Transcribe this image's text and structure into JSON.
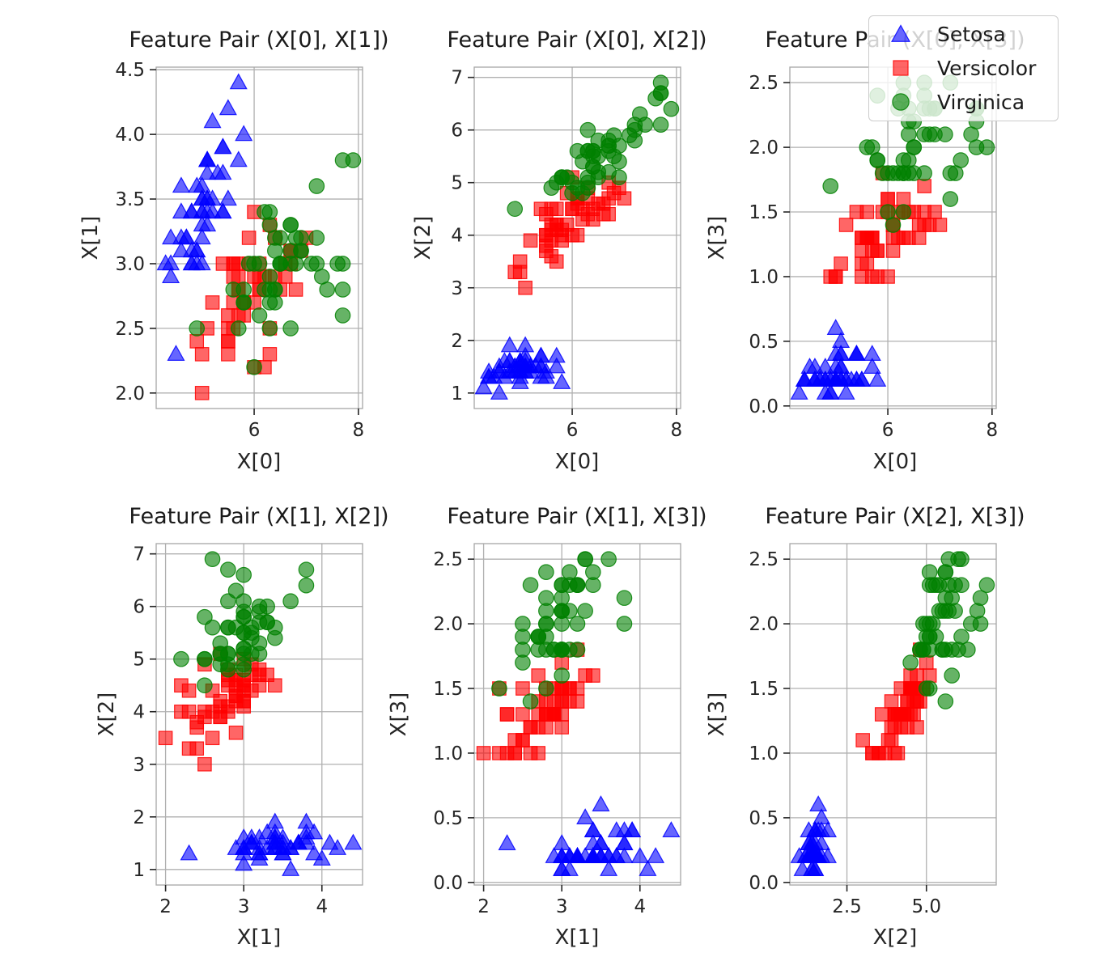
{
  "figure": {
    "background": "#ffffff",
    "grid_color": "#b0b0b0",
    "spine_color": "#a6a6a6",
    "tick_color": "#262626",
    "text_color": "#262626"
  },
  "legend": {
    "items": [
      {
        "label": "Setosa",
        "marker": "triangle",
        "color": "#0000ff"
      },
      {
        "label": "Versicolor",
        "marker": "square",
        "color": "#ff0000"
      },
      {
        "label": "Virginica",
        "marker": "circle",
        "color": "#008000"
      }
    ]
  },
  "chart_data": {
    "type": "scatter",
    "grid": true,
    "legend_position": "upper right",
    "marker_alpha": 0.6,
    "features": [
      "X[0]",
      "X[1]",
      "X[2]",
      "X[3]"
    ],
    "subplots": [
      {
        "title": "Feature Pair (X[0], X[1])",
        "xlabel": "X[0]",
        "ylabel": "X[1]",
        "xfeature": 0,
        "yfeature": 1,
        "xlim": [
          4.12,
          8.08
        ],
        "ylim": [
          1.88,
          4.52
        ],
        "xticks": [
          6,
          8
        ],
        "xtick_labels": [
          "6",
          "8"
        ],
        "yticks": [
          2.0,
          2.5,
          3.0,
          3.5,
          4.0,
          4.5
        ],
        "ytick_labels": [
          "2.0",
          "2.5",
          "3.0",
          "3.5",
          "4.0",
          "4.5"
        ]
      },
      {
        "title": "Feature Pair (X[0], X[2])",
        "xlabel": "X[0]",
        "ylabel": "X[2]",
        "xfeature": 0,
        "yfeature": 2,
        "xlim": [
          4.12,
          8.08
        ],
        "ylim": [
          0.705,
          7.195
        ],
        "xticks": [
          6,
          8
        ],
        "xtick_labels": [
          "6",
          "8"
        ],
        "yticks": [
          1,
          2,
          3,
          4,
          5,
          6,
          7
        ],
        "ytick_labels": [
          "1",
          "2",
          "3",
          "4",
          "5",
          "6",
          "7"
        ]
      },
      {
        "title": "Feature Pair (X[0], X[3])",
        "xlabel": "X[0]",
        "ylabel": "X[3]",
        "xfeature": 0,
        "yfeature": 3,
        "xlim": [
          4.12,
          8.08
        ],
        "ylim": [
          -0.02,
          2.62
        ],
        "xticks": [
          6,
          8
        ],
        "xtick_labels": [
          "6",
          "8"
        ],
        "yticks": [
          0.0,
          0.5,
          1.0,
          1.5,
          2.0,
          2.5
        ],
        "ytick_labels": [
          "0.0",
          "0.5",
          "1.0",
          "1.5",
          "2.0",
          "2.5"
        ]
      },
      {
        "title": "Feature Pair (X[1], X[2])",
        "xlabel": "X[1]",
        "ylabel": "X[2]",
        "xfeature": 1,
        "yfeature": 2,
        "xlim": [
          1.88,
          4.52
        ],
        "ylim": [
          0.705,
          7.195
        ],
        "xticks": [
          2,
          3,
          4
        ],
        "xtick_labels": [
          "2",
          "3",
          "4"
        ],
        "yticks": [
          1,
          2,
          3,
          4,
          5,
          6,
          7
        ],
        "ytick_labels": [
          "1",
          "2",
          "3",
          "4",
          "5",
          "6",
          "7"
        ]
      },
      {
        "title": "Feature Pair (X[1], X[3])",
        "xlabel": "X[1]",
        "ylabel": "X[3]",
        "xfeature": 1,
        "yfeature": 3,
        "xlim": [
          1.88,
          4.52
        ],
        "ylim": [
          -0.02,
          2.62
        ],
        "xticks": [
          2,
          3,
          4
        ],
        "xtick_labels": [
          "2",
          "3",
          "4"
        ],
        "yticks": [
          0.0,
          0.5,
          1.0,
          1.5,
          2.0,
          2.5
        ],
        "ytick_labels": [
          "0.0",
          "0.5",
          "1.0",
          "1.5",
          "2.0",
          "2.5"
        ]
      },
      {
        "title": "Feature Pair (X[2], X[3])",
        "xlabel": "X[2]",
        "ylabel": "X[3]",
        "xfeature": 2,
        "yfeature": 3,
        "xlim": [
          0.705,
          7.195
        ],
        "ylim": [
          -0.02,
          2.62
        ],
        "xticks": [
          2.5,
          5.0
        ],
        "xtick_labels": [
          "2.5",
          "5.0"
        ],
        "yticks": [
          0.0,
          0.5,
          1.0,
          1.5,
          2.0,
          2.5
        ],
        "ytick_labels": [
          "0.0",
          "0.5",
          "1.0",
          "1.5",
          "2.0",
          "2.5"
        ]
      }
    ],
    "classes": [
      {
        "name": "Setosa",
        "marker": "triangle",
        "color": "#0000ff",
        "points": [
          [
            5.1,
            3.5,
            1.4,
            0.2
          ],
          [
            4.9,
            3.0,
            1.4,
            0.2
          ],
          [
            4.7,
            3.2,
            1.3,
            0.2
          ],
          [
            4.6,
            3.1,
            1.5,
            0.2
          ],
          [
            5.0,
            3.6,
            1.4,
            0.2
          ],
          [
            5.4,
            3.9,
            1.7,
            0.4
          ],
          [
            4.6,
            3.4,
            1.4,
            0.3
          ],
          [
            5.0,
            3.4,
            1.5,
            0.2
          ],
          [
            4.4,
            2.9,
            1.4,
            0.2
          ],
          [
            4.9,
            3.1,
            1.5,
            0.1
          ],
          [
            5.4,
            3.7,
            1.5,
            0.2
          ],
          [
            4.8,
            3.4,
            1.6,
            0.2
          ],
          [
            4.8,
            3.0,
            1.4,
            0.1
          ],
          [
            4.3,
            3.0,
            1.1,
            0.1
          ],
          [
            5.8,
            4.0,
            1.2,
            0.2
          ],
          [
            5.7,
            4.4,
            1.5,
            0.4
          ],
          [
            5.4,
            3.9,
            1.3,
            0.4
          ],
          [
            5.1,
            3.5,
            1.4,
            0.3
          ],
          [
            5.7,
            3.8,
            1.7,
            0.3
          ],
          [
            5.1,
            3.8,
            1.5,
            0.3
          ],
          [
            5.4,
            3.4,
            1.7,
            0.2
          ],
          [
            5.1,
            3.7,
            1.5,
            0.4
          ],
          [
            4.6,
            3.6,
            1.0,
            0.2
          ],
          [
            5.1,
            3.3,
            1.7,
            0.5
          ],
          [
            4.8,
            3.4,
            1.9,
            0.2
          ],
          [
            5.0,
            3.0,
            1.6,
            0.2
          ],
          [
            5.0,
            3.4,
            1.6,
            0.4
          ],
          [
            5.2,
            3.5,
            1.5,
            0.2
          ],
          [
            5.2,
            3.4,
            1.4,
            0.2
          ],
          [
            4.7,
            3.2,
            1.6,
            0.2
          ],
          [
            4.8,
            3.1,
            1.6,
            0.2
          ],
          [
            5.4,
            3.4,
            1.5,
            0.4
          ],
          [
            5.2,
            4.1,
            1.5,
            0.1
          ],
          [
            5.5,
            4.2,
            1.4,
            0.2
          ],
          [
            4.9,
            3.1,
            1.5,
            0.2
          ],
          [
            5.0,
            3.2,
            1.2,
            0.2
          ],
          [
            5.5,
            3.5,
            1.3,
            0.2
          ],
          [
            4.9,
            3.6,
            1.4,
            0.1
          ],
          [
            4.4,
            3.0,
            1.3,
            0.2
          ],
          [
            5.1,
            3.4,
            1.5,
            0.2
          ],
          [
            5.0,
            3.5,
            1.3,
            0.3
          ],
          [
            4.5,
            2.3,
            1.3,
            0.3
          ],
          [
            4.4,
            3.2,
            1.3,
            0.2
          ],
          [
            5.0,
            3.5,
            1.6,
            0.6
          ],
          [
            5.1,
            3.8,
            1.9,
            0.4
          ],
          [
            4.8,
            3.0,
            1.4,
            0.3
          ],
          [
            5.1,
            3.8,
            1.6,
            0.2
          ],
          [
            4.6,
            3.2,
            1.4,
            0.2
          ],
          [
            5.3,
            3.7,
            1.5,
            0.2
          ],
          [
            5.0,
            3.3,
            1.4,
            0.2
          ]
        ]
      },
      {
        "name": "Versicolor",
        "marker": "square",
        "color": "#ff0000",
        "points": [
          [
            7.0,
            3.2,
            4.7,
            1.4
          ],
          [
            6.4,
            3.2,
            4.5,
            1.5
          ],
          [
            6.9,
            3.1,
            4.9,
            1.5
          ],
          [
            5.5,
            2.3,
            4.0,
            1.3
          ],
          [
            6.5,
            2.8,
            4.6,
            1.5
          ],
          [
            5.7,
            2.8,
            4.5,
            1.3
          ],
          [
            6.3,
            3.3,
            4.7,
            1.6
          ],
          [
            4.9,
            2.4,
            3.3,
            1.0
          ],
          [
            6.6,
            2.9,
            4.6,
            1.3
          ],
          [
            5.2,
            2.7,
            3.9,
            1.4
          ],
          [
            5.0,
            2.0,
            3.5,
            1.0
          ],
          [
            5.9,
            3.0,
            4.2,
            1.5
          ],
          [
            6.0,
            2.2,
            4.0,
            1.0
          ],
          [
            6.1,
            2.9,
            4.7,
            1.4
          ],
          [
            5.6,
            2.9,
            3.6,
            1.3
          ],
          [
            6.7,
            3.1,
            4.4,
            1.4
          ],
          [
            5.6,
            3.0,
            4.5,
            1.5
          ],
          [
            5.8,
            2.7,
            4.1,
            1.0
          ],
          [
            6.2,
            2.2,
            4.5,
            1.5
          ],
          [
            5.6,
            2.5,
            3.9,
            1.1
          ],
          [
            5.9,
            3.2,
            4.8,
            1.8
          ],
          [
            6.1,
            2.8,
            4.0,
            1.3
          ],
          [
            6.3,
            2.5,
            4.9,
            1.5
          ],
          [
            6.1,
            2.8,
            4.7,
            1.2
          ],
          [
            6.4,
            2.9,
            4.3,
            1.3
          ],
          [
            6.6,
            3.0,
            4.4,
            1.4
          ],
          [
            6.8,
            2.8,
            4.8,
            1.4
          ],
          [
            6.7,
            3.0,
            5.0,
            1.7
          ],
          [
            6.0,
            2.9,
            4.5,
            1.5
          ],
          [
            5.7,
            2.6,
            3.5,
            1.0
          ],
          [
            5.5,
            2.4,
            3.8,
            1.1
          ],
          [
            5.5,
            2.4,
            3.7,
            1.0
          ],
          [
            5.8,
            2.7,
            3.9,
            1.2
          ],
          [
            6.0,
            2.7,
            5.1,
            1.6
          ],
          [
            5.4,
            3.0,
            4.5,
            1.5
          ],
          [
            6.0,
            3.4,
            4.5,
            1.6
          ],
          [
            6.7,
            3.1,
            4.7,
            1.5
          ],
          [
            6.3,
            2.3,
            4.4,
            1.3
          ],
          [
            5.6,
            3.0,
            4.1,
            1.3
          ],
          [
            5.5,
            2.5,
            4.0,
            1.3
          ],
          [
            5.5,
            2.6,
            4.4,
            1.2
          ],
          [
            6.1,
            3.0,
            4.6,
            1.4
          ],
          [
            5.8,
            2.6,
            4.0,
            1.2
          ],
          [
            5.0,
            2.3,
            3.3,
            1.0
          ],
          [
            5.6,
            2.7,
            4.2,
            1.3
          ],
          [
            5.7,
            3.0,
            4.2,
            1.2
          ],
          [
            5.7,
            2.9,
            4.2,
            1.3
          ],
          [
            6.2,
            2.9,
            4.3,
            1.3
          ],
          [
            5.1,
            2.5,
            3.0,
            1.1
          ],
          [
            5.7,
            2.8,
            4.1,
            1.3
          ]
        ]
      },
      {
        "name": "Virginica",
        "marker": "circle",
        "color": "#008000",
        "points": [
          [
            6.3,
            3.3,
            6.0,
            2.5
          ],
          [
            5.8,
            2.7,
            5.1,
            1.9
          ],
          [
            7.1,
            3.0,
            5.9,
            2.1
          ],
          [
            6.3,
            2.9,
            5.6,
            1.8
          ],
          [
            6.5,
            3.0,
            5.8,
            2.2
          ],
          [
            7.6,
            3.0,
            6.6,
            2.1
          ],
          [
            4.9,
            2.5,
            4.5,
            1.7
          ],
          [
            7.3,
            2.9,
            6.3,
            1.8
          ],
          [
            6.7,
            2.5,
            5.8,
            1.8
          ],
          [
            7.2,
            3.6,
            6.1,
            2.5
          ],
          [
            6.5,
            3.2,
            5.1,
            2.0
          ],
          [
            6.4,
            2.7,
            5.3,
            1.9
          ],
          [
            6.8,
            3.0,
            5.5,
            2.1
          ],
          [
            5.7,
            2.5,
            5.0,
            2.0
          ],
          [
            5.8,
            2.8,
            5.1,
            2.4
          ],
          [
            6.4,
            3.2,
            5.3,
            2.3
          ],
          [
            6.5,
            3.0,
            5.5,
            1.8
          ],
          [
            7.7,
            3.8,
            6.7,
            2.2
          ],
          [
            7.7,
            2.6,
            6.9,
            2.3
          ],
          [
            6.0,
            2.2,
            5.0,
            1.5
          ],
          [
            6.9,
            3.2,
            5.7,
            2.3
          ],
          [
            5.6,
            2.8,
            4.9,
            2.0
          ],
          [
            7.7,
            2.8,
            6.7,
            2.0
          ],
          [
            6.3,
            2.7,
            4.9,
            1.8
          ],
          [
            6.7,
            3.3,
            5.7,
            2.1
          ],
          [
            7.2,
            3.2,
            6.0,
            1.8
          ],
          [
            6.2,
            2.8,
            4.8,
            1.8
          ],
          [
            6.1,
            3.0,
            4.9,
            1.8
          ],
          [
            6.4,
            2.8,
            5.6,
            2.1
          ],
          [
            7.2,
            3.0,
            5.8,
            1.6
          ],
          [
            7.4,
            2.8,
            6.1,
            1.9
          ],
          [
            7.9,
            3.8,
            6.4,
            2.0
          ],
          [
            6.4,
            2.8,
            5.6,
            2.2
          ],
          [
            6.3,
            2.8,
            5.1,
            1.5
          ],
          [
            6.1,
            2.6,
            5.6,
            1.4
          ],
          [
            7.7,
            3.0,
            6.1,
            2.3
          ],
          [
            6.3,
            3.4,
            5.6,
            2.4
          ],
          [
            6.4,
            3.1,
            5.5,
            1.8
          ],
          [
            6.0,
            3.0,
            4.8,
            1.8
          ],
          [
            6.9,
            3.1,
            5.4,
            2.1
          ],
          [
            6.7,
            3.1,
            5.6,
            2.4
          ],
          [
            6.9,
            3.1,
            5.1,
            2.3
          ],
          [
            5.8,
            2.7,
            5.1,
            1.9
          ],
          [
            6.8,
            3.2,
            5.9,
            2.3
          ],
          [
            6.7,
            3.3,
            5.7,
            2.5
          ],
          [
            6.7,
            3.0,
            5.2,
            2.3
          ],
          [
            6.3,
            2.5,
            5.0,
            1.9
          ],
          [
            6.5,
            3.0,
            5.2,
            2.0
          ],
          [
            6.2,
            3.4,
            5.4,
            2.3
          ],
          [
            5.9,
            3.0,
            5.1,
            1.8
          ]
        ]
      }
    ]
  }
}
